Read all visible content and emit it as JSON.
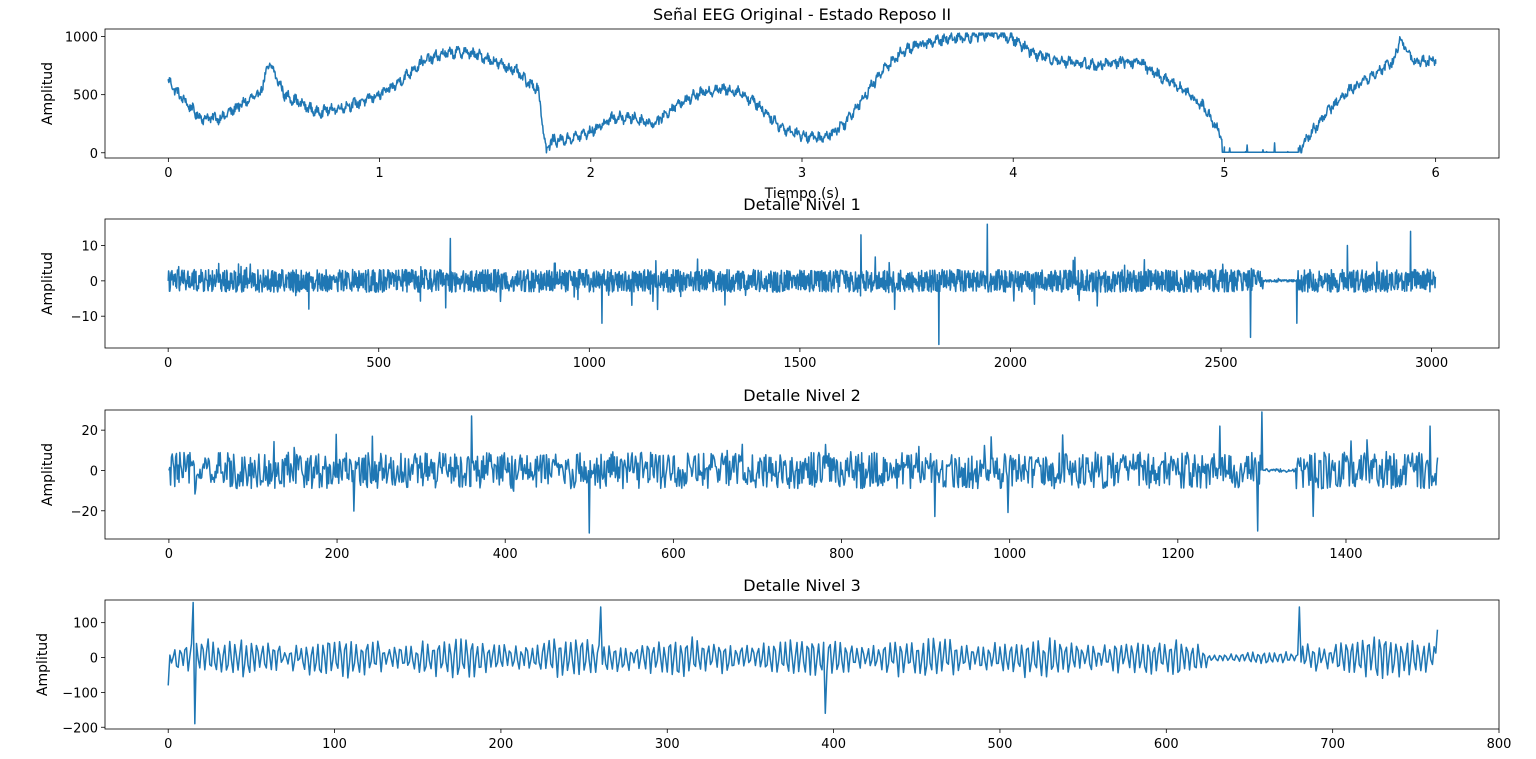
{
  "figure": {
    "background": "#ffffff",
    "line_color": "#1f77b4"
  },
  "chart_data": [
    {
      "type": "line",
      "title": "Señal EEG Original - Estado Reposo II",
      "xlabel": "Tiempo (s)",
      "ylabel": "Amplitud",
      "xlim": [
        -0.3,
        6.3
      ],
      "ylim": [
        -45,
        1065
      ],
      "xticks": [
        0,
        1,
        2,
        3,
        4,
        5,
        6
      ],
      "yticks": [
        0,
        500,
        1000
      ],
      "grid": false,
      "series": [
        {
          "x": [
            0,
            0.05,
            0.1,
            0.15,
            0.25,
            0.35,
            0.43,
            0.48,
            0.55,
            0.7,
            0.8,
            0.9,
            1.0,
            1.05,
            1.1,
            1.2,
            1.3,
            1.4,
            1.5,
            1.6,
            1.65,
            1.7,
            1.75,
            1.79,
            1.81,
            1.9,
            2.0,
            2.1,
            2.2,
            2.3,
            2.4,
            2.5,
            2.6,
            2.7,
            2.8,
            2.9,
            3.0,
            3.1,
            3.2,
            3.3,
            3.4,
            3.5,
            3.6,
            3.7,
            3.8,
            3.9,
            4.0,
            4.1,
            4.2,
            4.4,
            4.5,
            4.6,
            4.7,
            4.8,
            4.9,
            4.97,
            5.0,
            5.1,
            5.2,
            5.3,
            5.35,
            5.4,
            5.5,
            5.6,
            5.7,
            5.8,
            5.83,
            5.9,
            6.0
          ],
          "y": [
            620,
            500,
            400,
            300,
            300,
            420,
            500,
            770,
            500,
            350,
            380,
            430,
            500,
            550,
            620,
            780,
            850,
            870,
            820,
            740,
            700,
            600,
            560,
            0,
            100,
            120,
            180,
            300,
            300,
            250,
            400,
            500,
            550,
            530,
            400,
            220,
            150,
            120,
            250,
            500,
            750,
            900,
            950,
            980,
            1000,
            1030,
            980,
            850,
            800,
            750,
            780,
            780,
            650,
            550,
            400,
            200,
            50,
            10,
            10,
            10,
            10,
            150,
            380,
            550,
            670,
            780,
            990,
            780,
            800
          ]
        }
      ]
    },
    {
      "type": "line",
      "title": "Detalle Nivel 1",
      "xlabel": "",
      "ylabel": "Amplitud",
      "xlim": [
        -150,
        3160
      ],
      "ylim": [
        -19,
        17.5
      ],
      "xticks": [
        0,
        500,
        1000,
        1500,
        2000,
        2500,
        3000
      ],
      "yticks": [
        -10,
        0,
        10
      ],
      "grid": false,
      "n_points": 3010,
      "series": [
        {
          "x": [
            0,
            670,
            1030,
            1645,
            1830,
            1945,
            2510,
            2570,
            2590,
            2680,
            2800,
            2950,
            3010
          ],
          "y": [
            0,
            12,
            -12,
            13,
            -18,
            16,
            1,
            -16,
            0,
            -12,
            10,
            14,
            -2
          ]
        }
      ]
    },
    {
      "type": "line",
      "title": "Detalle Nivel 2",
      "xlabel": "",
      "ylabel": "Amplitud",
      "xlim": [
        -76,
        1582
      ],
      "ylim": [
        -34,
        30
      ],
      "xticks": [
        0,
        200,
        400,
        600,
        800,
        1000,
        1200,
        1400
      ],
      "yticks": [
        -20,
        0,
        20
      ],
      "grid": false,
      "n_points": 1510,
      "series": [
        {
          "x": [
            0,
            360,
            500,
            1250,
            1295,
            1300,
            1340,
            1500,
            1510
          ],
          "y": [
            0,
            27,
            -31,
            22,
            -30,
            29,
            1,
            22,
            14
          ]
        }
      ]
    },
    {
      "type": "line",
      "title": "Detalle Nivel 3",
      "xlabel": "",
      "ylabel": "Amplitud",
      "xlim": [
        -38,
        800
      ],
      "ylim": [
        -205,
        165
      ],
      "xticks": [
        0,
        100,
        200,
        300,
        400,
        500,
        600,
        700,
        800
      ],
      "yticks": [
        -200,
        -100,
        0,
        100
      ],
      "grid": false,
      "n_points": 764,
      "series": [
        {
          "x": [
            0,
            15,
            15.5,
            260,
            395,
            680,
            763
          ],
          "y": [
            -80,
            158,
            -190,
            145,
            -160,
            145,
            80
          ]
        }
      ]
    }
  ]
}
